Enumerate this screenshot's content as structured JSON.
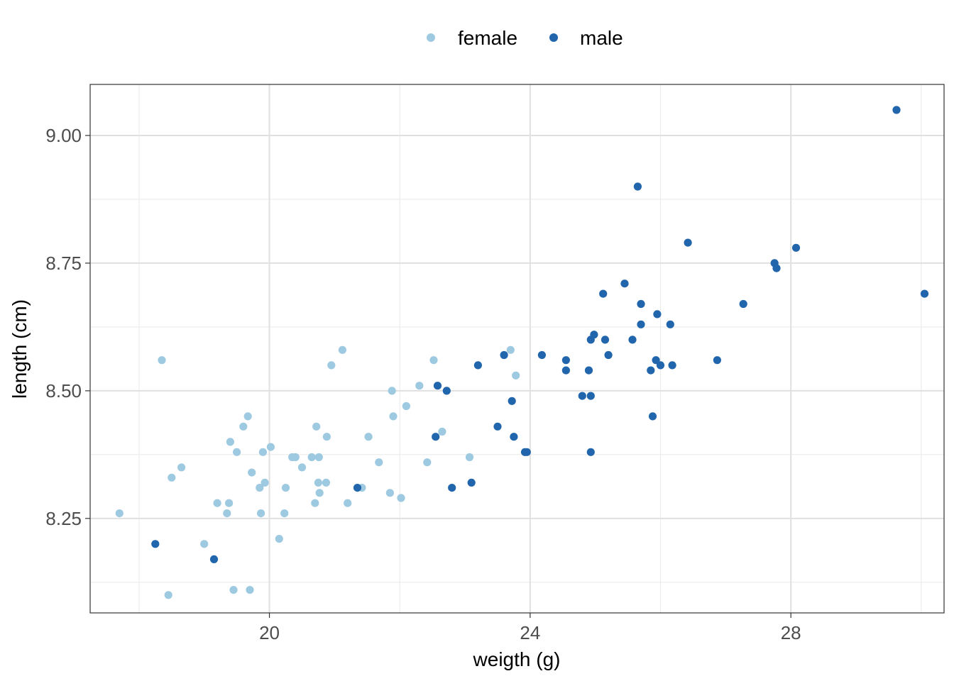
{
  "chart_data": {
    "type": "scatter",
    "xlabel": "weigth (g)",
    "ylabel": "length (cm)",
    "xlim": [
      17.25,
      30.35
    ],
    "ylim": [
      8.065,
      9.1
    ],
    "x_ticks": [
      {
        "value": 20,
        "label": "20"
      },
      {
        "value": 24,
        "label": "24"
      },
      {
        "value": 28,
        "label": "28"
      }
    ],
    "x_minor": [
      18,
      22,
      26,
      30
    ],
    "y_ticks": [
      {
        "value": 8.25,
        "label": "8.25"
      },
      {
        "value": 8.5,
        "label": "8.50"
      },
      {
        "value": 8.75,
        "label": "8.75"
      },
      {
        "value": 9.0,
        "label": "9.00"
      }
    ],
    "y_minor": [
      8.125,
      8.375,
      8.625,
      8.875
    ],
    "grid": true,
    "legend_position": "top",
    "series": [
      {
        "name": "female",
        "color": "#9ecae1",
        "points": [
          [
            17.7,
            8.26
          ],
          [
            18.35,
            8.56
          ],
          [
            18.45,
            8.1
          ],
          [
            18.5,
            8.33
          ],
          [
            18.65,
            8.35
          ],
          [
            19.0,
            8.2
          ],
          [
            19.2,
            8.28
          ],
          [
            19.35,
            8.26
          ],
          [
            19.38,
            8.28
          ],
          [
            19.4,
            8.4
          ],
          [
            19.45,
            8.11
          ],
          [
            19.5,
            8.38
          ],
          [
            19.6,
            8.43
          ],
          [
            19.67,
            8.45
          ],
          [
            19.7,
            8.11
          ],
          [
            19.73,
            8.34
          ],
          [
            19.85,
            8.31
          ],
          [
            19.87,
            8.26
          ],
          [
            19.9,
            8.38
          ],
          [
            19.93,
            8.32
          ],
          [
            20.02,
            8.39
          ],
          [
            20.15,
            8.21
          ],
          [
            20.23,
            8.26
          ],
          [
            20.25,
            8.31
          ],
          [
            20.35,
            8.37
          ],
          [
            20.4,
            8.37
          ],
          [
            20.5,
            8.35
          ],
          [
            20.65,
            8.37
          ],
          [
            20.7,
            8.28
          ],
          [
            20.72,
            8.43
          ],
          [
            20.75,
            8.32
          ],
          [
            20.76,
            8.37
          ],
          [
            20.77,
            8.3
          ],
          [
            20.87,
            8.32
          ],
          [
            20.88,
            8.41
          ],
          [
            20.95,
            8.55
          ],
          [
            21.12,
            8.58
          ],
          [
            21.2,
            8.28
          ],
          [
            21.42,
            8.31
          ],
          [
            21.52,
            8.41
          ],
          [
            21.68,
            8.36
          ],
          [
            21.85,
            8.3
          ],
          [
            21.88,
            8.5
          ],
          [
            21.9,
            8.45
          ],
          [
            22.02,
            8.29
          ],
          [
            22.1,
            8.47
          ],
          [
            22.3,
            8.51
          ],
          [
            22.42,
            8.36
          ],
          [
            22.52,
            8.56
          ],
          [
            22.65,
            8.42
          ],
          [
            23.07,
            8.37
          ],
          [
            23.7,
            8.58
          ],
          [
            23.78,
            8.53
          ]
        ]
      },
      {
        "name": "male",
        "color": "#2166ac",
        "points": [
          [
            18.25,
            8.2
          ],
          [
            19.15,
            8.17
          ],
          [
            21.35,
            8.31
          ],
          [
            22.55,
            8.41
          ],
          [
            22.58,
            8.51
          ],
          [
            22.72,
            8.5
          ],
          [
            22.8,
            8.31
          ],
          [
            23.1,
            8.32
          ],
          [
            23.2,
            8.55
          ],
          [
            23.5,
            8.43
          ],
          [
            23.6,
            8.57
          ],
          [
            23.72,
            8.48
          ],
          [
            23.75,
            8.41
          ],
          [
            23.92,
            8.38
          ],
          [
            23.95,
            8.38
          ],
          [
            24.18,
            8.57
          ],
          [
            24.55,
            8.56
          ],
          [
            24.55,
            8.54
          ],
          [
            24.8,
            8.49
          ],
          [
            24.9,
            8.54
          ],
          [
            24.93,
            8.6
          ],
          [
            24.93,
            8.49
          ],
          [
            24.93,
            8.38
          ],
          [
            24.98,
            8.61
          ],
          [
            25.12,
            8.69
          ],
          [
            25.15,
            8.6
          ],
          [
            25.2,
            8.57
          ],
          [
            25.45,
            8.71
          ],
          [
            25.57,
            8.6
          ],
          [
            25.65,
            8.9
          ],
          [
            25.7,
            8.67
          ],
          [
            25.7,
            8.63
          ],
          [
            25.85,
            8.54
          ],
          [
            25.88,
            8.45
          ],
          [
            25.93,
            8.56
          ],
          [
            25.95,
            8.65
          ],
          [
            26.0,
            8.55
          ],
          [
            26.15,
            8.63
          ],
          [
            26.18,
            8.55
          ],
          [
            26.42,
            8.79
          ],
          [
            26.87,
            8.56
          ],
          [
            27.27,
            8.67
          ],
          [
            27.75,
            8.75
          ],
          [
            27.78,
            8.74
          ],
          [
            28.08,
            8.78
          ],
          [
            29.62,
            9.05
          ],
          [
            30.05,
            8.69
          ]
        ]
      }
    ]
  }
}
